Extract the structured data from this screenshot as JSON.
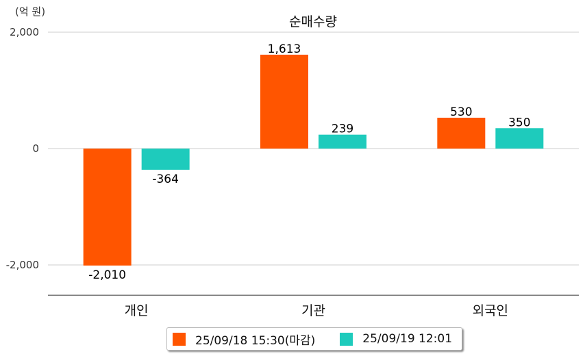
{
  "chart_data": {
    "type": "bar",
    "title": "순매수량",
    "unit_label": "(억 원)",
    "categories": [
      "개인",
      "기관",
      "외국인"
    ],
    "series": [
      {
        "name": "25/09/18 15:30(마감)",
        "color": "#ff5500",
        "values": [
          -2010,
          1613,
          530
        ],
        "labels": [
          "-2,010",
          "1,613",
          "530"
        ]
      },
      {
        "name": "25/09/19 12:01",
        "color": "#1ecbbc",
        "values": [
          -364,
          239,
          350
        ],
        "labels": [
          "-364",
          "239",
          "350"
        ]
      }
    ],
    "yticks": [
      2000,
      0,
      -2000
    ],
    "ytick_labels": [
      "2,000",
      "0",
      "-2,000"
    ],
    "ylim": [
      -2520,
      2000
    ],
    "grid": true,
    "legend": "bottom"
  }
}
